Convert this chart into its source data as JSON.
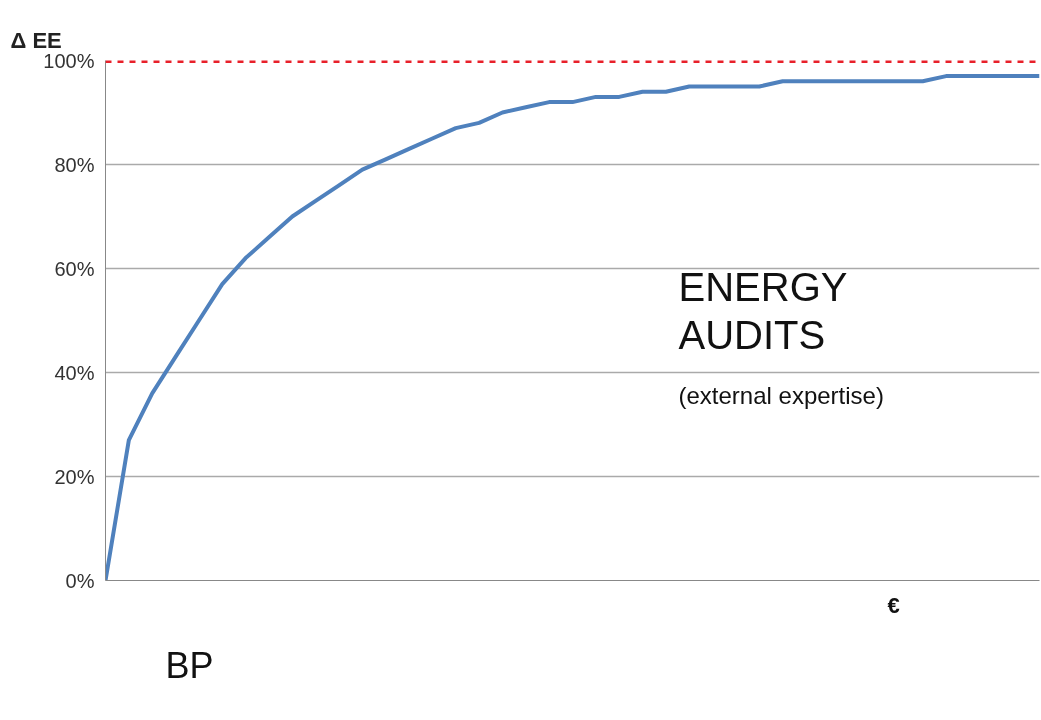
{
  "chart_data": {
    "type": "line",
    "ylabel": "Δ EE",
    "xlabel": "€",
    "categories": [
      null,
      null,
      null,
      null,
      null,
      null,
      null,
      null,
      null,
      null,
      null,
      null,
      null,
      null,
      null,
      null,
      null,
      null,
      null,
      null,
      null,
      null,
      null,
      null,
      null,
      null,
      null,
      null,
      null,
      null,
      null,
      null,
      null,
      null,
      null,
      null,
      null,
      null,
      null,
      null,
      null
    ],
    "series": [
      {
        "color": "#4f81bd",
        "values": [
          0,
          27,
          36,
          43,
          50,
          57,
          62,
          66,
          70,
          73,
          76,
          79,
          81,
          83,
          85,
          87,
          88,
          90,
          91,
          92,
          92,
          93,
          93,
          94,
          94,
          95,
          95,
          95,
          95,
          96,
          96,
          96,
          96,
          96,
          96,
          96,
          97,
          97,
          97,
          97,
          97
        ]
      }
    ],
    "ylim": [
      0,
      100
    ],
    "yticks": [
      {
        "value": 0,
        "label": "0%"
      },
      {
        "value": 20,
        "label": "20%"
      },
      {
        "value": 40,
        "label": "40%"
      },
      {
        "value": 60,
        "label": "60%"
      },
      {
        "value": 80,
        "label": "80%"
      },
      {
        "value": 100,
        "label": "100%"
      }
    ],
    "grid": "y",
    "marker": "none",
    "line_style": "solid",
    "tick_labels": "y",
    "ref_lines": [
      {
        "axis": "y",
        "value": 100,
        "color": "#e8202a",
        "line_style": "dashed"
      }
    ],
    "annotations": [
      "ENERGY AUDITS",
      "(external expertise)",
      "BP"
    ]
  }
}
